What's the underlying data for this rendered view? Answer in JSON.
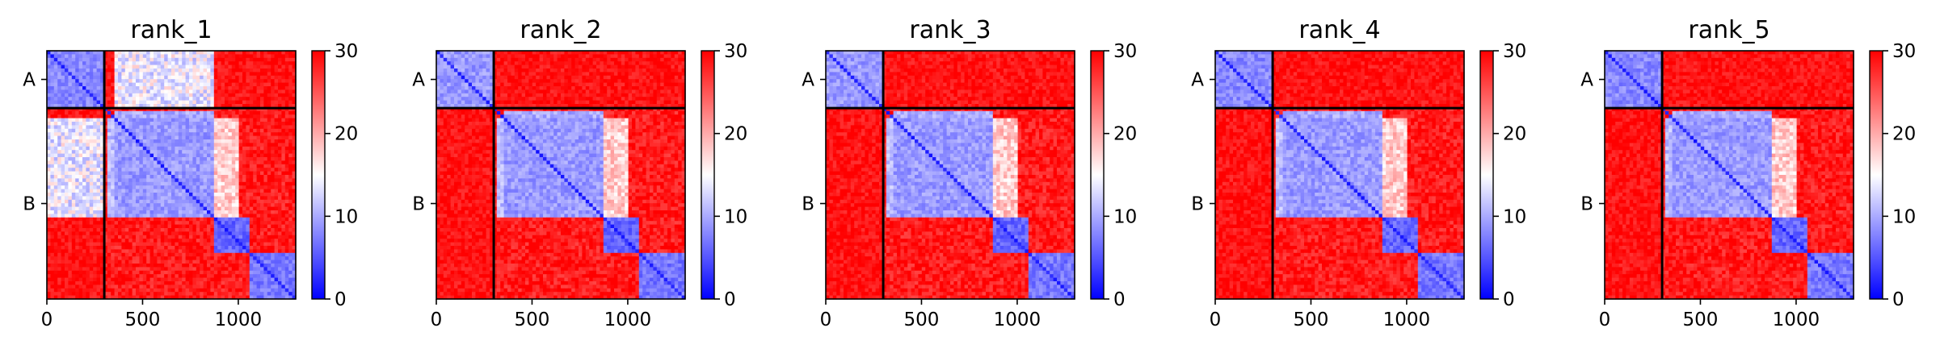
{
  "chart_data": [
    {
      "type": "heatmap",
      "title": "rank_1",
      "x_ticks": [
        "0",
        "500",
        "1000"
      ],
      "x_tick_values": [
        0,
        500,
        1000
      ],
      "xlim": [
        0,
        1300
      ],
      "y_tick_labels": [
        "A",
        "B"
      ],
      "chain_boundary": 300,
      "n_residues": 1300,
      "colorbar": {
        "ticks": [
          "0",
          "10",
          "20",
          "30"
        ],
        "min": 0,
        "max": 30,
        "colormap": "bwr"
      },
      "blocks": [
        {
          "from": 0,
          "to": 300,
          "level": 8
        },
        {
          "from": 350,
          "to": 870,
          "level": 9
        },
        {
          "from": 870,
          "to": 1060,
          "level": 6
        },
        {
          "from": 1060,
          "to": 1300,
          "level": 7
        }
      ],
      "inter_chain_level": 14
    },
    {
      "type": "heatmap",
      "title": "rank_2",
      "x_ticks": [
        "0",
        "500",
        "1000"
      ],
      "x_tick_values": [
        0,
        500,
        1000
      ],
      "xlim": [
        0,
        1300
      ],
      "y_tick_labels": [
        "A",
        "B"
      ],
      "chain_boundary": 300,
      "n_residues": 1300,
      "colorbar": {
        "ticks": [
          "0",
          "10",
          "20",
          "30"
        ],
        "min": 0,
        "max": 30,
        "colormap": "bwr"
      },
      "blocks": [
        {
          "from": 0,
          "to": 300,
          "level": 9
        },
        {
          "from": 350,
          "to": 870,
          "level": 9
        },
        {
          "from": 870,
          "to": 1060,
          "level": 6
        },
        {
          "from": 1060,
          "to": 1300,
          "level": 7
        }
      ],
      "inter_chain_level": 29
    },
    {
      "type": "heatmap",
      "title": "rank_3",
      "x_ticks": [
        "0",
        "500",
        "1000"
      ],
      "x_tick_values": [
        0,
        500,
        1000
      ],
      "xlim": [
        0,
        1300
      ],
      "y_tick_labels": [
        "A",
        "B"
      ],
      "chain_boundary": 300,
      "n_residues": 1300,
      "colorbar": {
        "ticks": [
          "0",
          "10",
          "20",
          "30"
        ],
        "min": 0,
        "max": 30,
        "colormap": "bwr"
      },
      "blocks": [
        {
          "from": 0,
          "to": 300,
          "level": 9
        },
        {
          "from": 350,
          "to": 870,
          "level": 9
        },
        {
          "from": 870,
          "to": 1060,
          "level": 6
        },
        {
          "from": 1060,
          "to": 1300,
          "level": 7
        }
      ],
      "inter_chain_level": 29
    },
    {
      "type": "heatmap",
      "title": "rank_4",
      "x_ticks": [
        "0",
        "500",
        "1000"
      ],
      "x_tick_values": [
        0,
        500,
        1000
      ],
      "xlim": [
        0,
        1300
      ],
      "y_tick_labels": [
        "A",
        "B"
      ],
      "chain_boundary": 300,
      "n_residues": 1300,
      "colorbar": {
        "ticks": [
          "0",
          "10",
          "20",
          "30"
        ],
        "min": 0,
        "max": 30,
        "colormap": "bwr"
      },
      "blocks": [
        {
          "from": 0,
          "to": 300,
          "level": 8
        },
        {
          "from": 350,
          "to": 870,
          "level": 9
        },
        {
          "from": 870,
          "to": 1060,
          "level": 6
        },
        {
          "from": 1060,
          "to": 1300,
          "level": 7
        }
      ],
      "inter_chain_level": 30
    },
    {
      "type": "heatmap",
      "title": "rank_5",
      "x_ticks": [
        "0",
        "500",
        "1000"
      ],
      "x_tick_values": [
        0,
        500,
        1000
      ],
      "xlim": [
        0,
        1300
      ],
      "y_tick_labels": [
        "A",
        "B"
      ],
      "chain_boundary": 300,
      "n_residues": 1300,
      "colorbar": {
        "ticks": [
          "0",
          "10",
          "20",
          "30"
        ],
        "min": 0,
        "max": 30,
        "colormap": "bwr"
      },
      "blocks": [
        {
          "from": 0,
          "to": 300,
          "level": 8
        },
        {
          "from": 350,
          "to": 870,
          "level": 9
        },
        {
          "from": 870,
          "to": 1060,
          "level": 6
        },
        {
          "from": 1060,
          "to": 1300,
          "level": 7
        }
      ],
      "inter_chain_level": 30
    }
  ]
}
